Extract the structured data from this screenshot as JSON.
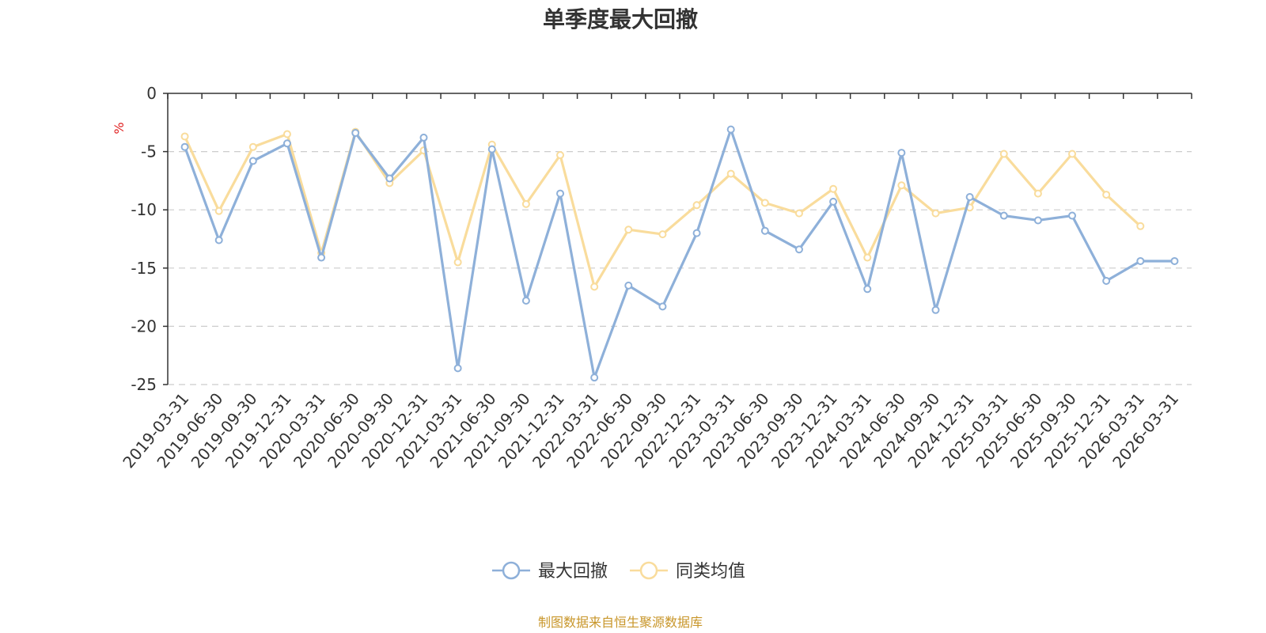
{
  "chart_data": {
    "type": "line",
    "title": "单季度最大回撤",
    "ylabel": "%",
    "ylim": [
      -25,
      0
    ],
    "yticks": [
      0,
      -5,
      -10,
      -15,
      -20,
      -25
    ],
    "grid": true,
    "legend_position": "bottom-center",
    "categories": [
      "2019-03-31",
      "2019-06-30",
      "2019-09-30",
      "2019-12-31",
      "2020-03-31",
      "2020-06-30",
      "2020-09-30",
      "2020-12-31",
      "2021-03-31",
      "2021-06-30",
      "2021-09-30",
      "2021-12-31",
      "2022-03-31",
      "2022-06-30",
      "2022-09-30",
      "2022-12-31",
      "2023-03-31",
      "2023-06-30",
      "2023-09-30",
      "2023-12-31",
      "2024-03-31",
      "2024-06-30",
      "2024-09-30",
      "2024-12-31",
      "2025-03-31",
      "2025-06-30",
      "2025-09-30",
      "2025-12-31",
      "2026-03-31",
      "2026-03-31"
    ],
    "series": [
      {
        "name": "最大回撤",
        "color": "#8eb0d9",
        "values": [
          -4.6,
          -12.6,
          -5.8,
          -4.3,
          -14.1,
          -3.4,
          -7.3,
          -3.8,
          -23.6,
          -4.8,
          -17.8,
          -8.6,
          -24.4,
          -16.5,
          -18.3,
          -12.0,
          -3.1,
          -11.8,
          -13.4,
          -9.3,
          -16.8,
          -5.1,
          -18.6,
          -8.9,
          -10.5,
          -10.9,
          -10.5,
          -16.1,
          -14.4,
          -14.4
        ]
      },
      {
        "name": "同类均值",
        "color": "#f9dc9c",
        "values": [
          -3.7,
          -10.1,
          -4.6,
          -3.5,
          -13.7,
          -3.3,
          -7.7,
          -4.9,
          -14.5,
          -4.4,
          -9.5,
          -5.3,
          -16.6,
          -11.7,
          -12.1,
          -9.6,
          -6.9,
          -9.4,
          -10.3,
          -8.2,
          -14.1,
          -7.9,
          -10.3,
          -9.8,
          -5.2,
          -8.6,
          -5.2,
          -8.7,
          -11.4,
          null
        ]
      }
    ]
  },
  "source_text": "制图数据来自恒生聚源数据库"
}
